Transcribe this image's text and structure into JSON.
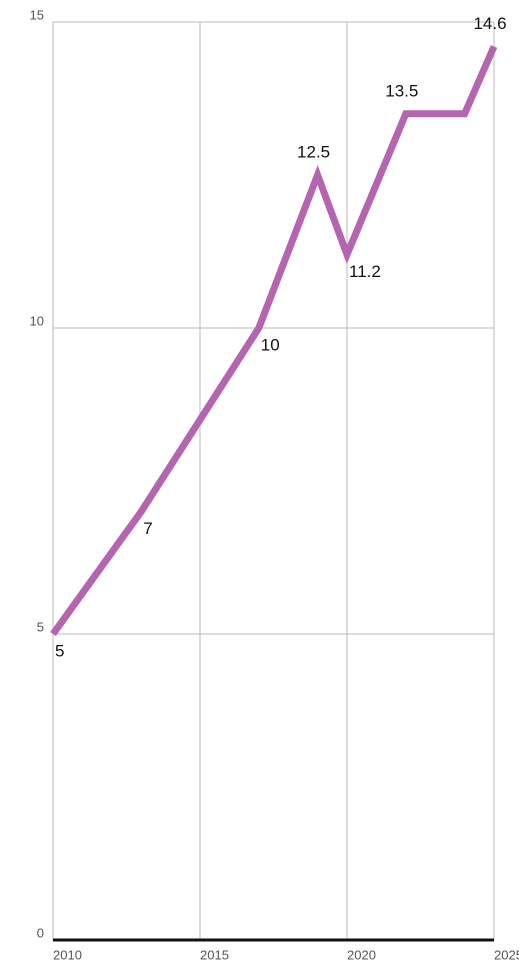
{
  "chart_data": {
    "type": "line",
    "x": [
      2010,
      2013,
      2017,
      2019,
      2020,
      2022,
      2024,
      2025
    ],
    "series": [
      {
        "color": "#b565b0",
        "values": [
          5,
          7,
          10,
          12.5,
          11.2,
          13.5,
          13.5,
          14.6
        ],
        "value_labels": [
          "5",
          "7",
          "10",
          "12.5",
          "11.2",
          "13.5",
          null,
          "14.6"
        ]
      }
    ],
    "xlim": [
      2010,
      2025
    ],
    "xticks": [
      2010,
      2015,
      2020,
      2025
    ],
    "ylim": [
      0,
      15
    ],
    "yticks": [
      0,
      5,
      10,
      15
    ],
    "grid": true
  }
}
